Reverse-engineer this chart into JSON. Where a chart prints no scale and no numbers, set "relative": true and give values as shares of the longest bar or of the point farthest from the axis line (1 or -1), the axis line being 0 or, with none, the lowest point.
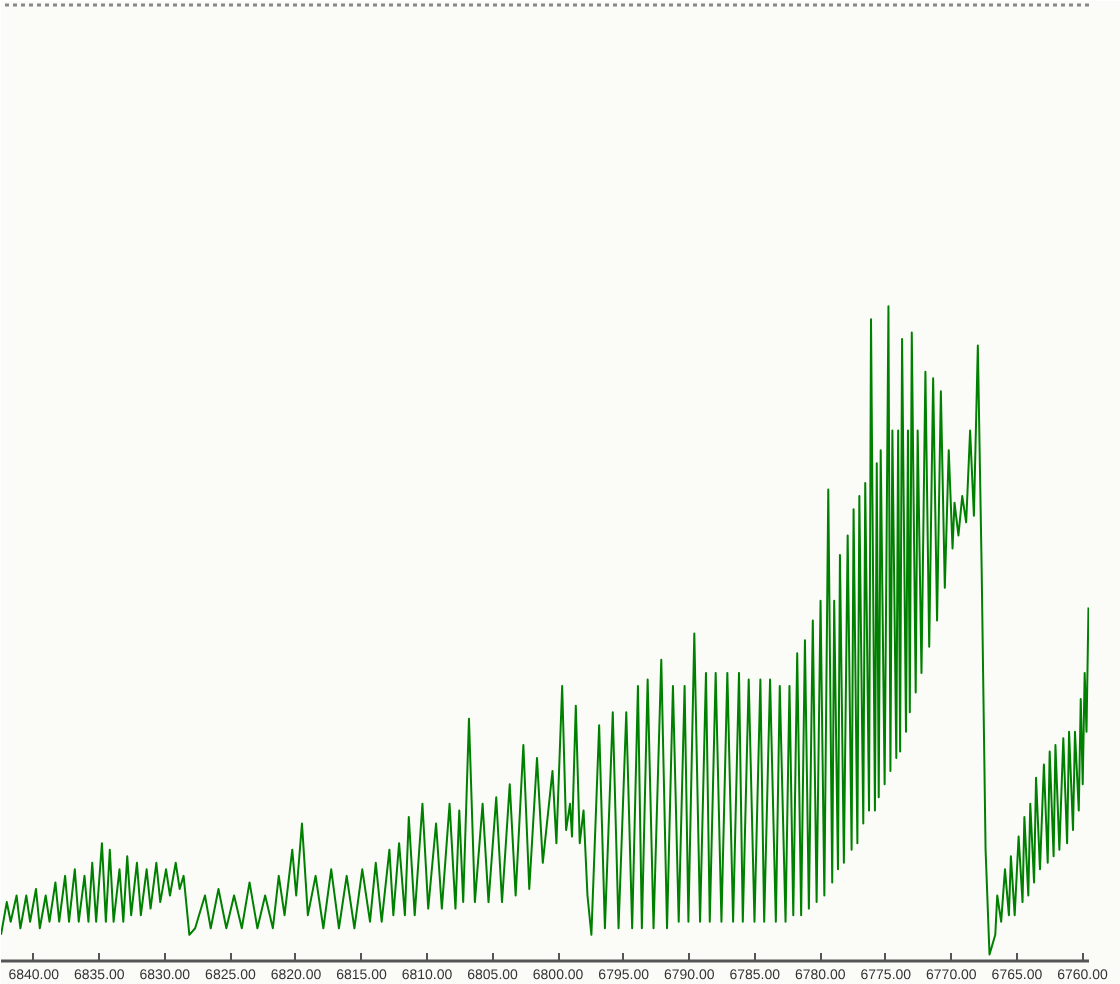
{
  "chart_data": {
    "type": "line",
    "relative": true,
    "color": "#008000",
    "xlim": [
      6842.5,
      6759.5
    ],
    "xticks": [
      {
        "value": 6840,
        "label": "6840.00"
      },
      {
        "value": 6835,
        "label": "6835.00"
      },
      {
        "value": 6830,
        "label": "6830.00"
      },
      {
        "value": 6825,
        "label": "6825.00"
      },
      {
        "value": 6820,
        "label": "6820.00"
      },
      {
        "value": 6815,
        "label": "6815.00"
      },
      {
        "value": 6810,
        "label": "6810.00"
      },
      {
        "value": 6805,
        "label": "6805.00"
      },
      {
        "value": 6800,
        "label": "6800.00"
      },
      {
        "value": 6795,
        "label": "6795.00"
      },
      {
        "value": 6790,
        "label": "6790.00"
      },
      {
        "value": 6785,
        "label": "6785.00"
      },
      {
        "value": 6780,
        "label": "6780.00"
      },
      {
        "value": 6775,
        "label": "6775.00"
      },
      {
        "value": 6770,
        "label": "6770.00"
      },
      {
        "value": 6765,
        "label": "6765.00"
      },
      {
        "value": 6760,
        "label": "6760.00"
      }
    ],
    "x": [
      6842.5,
      6842.06,
      6841.76,
      6841.31,
      6841.02,
      6840.57,
      6840.28,
      6839.83,
      6839.54,
      6839.09,
      6838.8,
      6838.35,
      6838.06,
      6837.61,
      6837.31,
      6836.87,
      6836.57,
      6836.13,
      6835.83,
      6835.54,
      6835.24,
      6834.8,
      6834.5,
      6834.2,
      6833.91,
      6833.46,
      6833.17,
      6832.87,
      6832.57,
      6832.13,
      6831.83,
      6831.39,
      6831.09,
      6830.65,
      6830.35,
      6829.91,
      6829.61,
      6829.17,
      6828.87,
      6828.57,
      6828.13,
      6827.69,
      6826.94,
      6826.5,
      6825.91,
      6825.31,
      6824.72,
      6824.13,
      6823.54,
      6822.94,
      6822.35,
      6821.76,
      6821.31,
      6820.87,
      6820.28,
      6819.98,
      6819.54,
      6819.09,
      6818.5,
      6817.91,
      6817.31,
      6816.72,
      6816.13,
      6815.54,
      6814.94,
      6814.35,
      6813.91,
      6813.46,
      6812.87,
      6812.57,
      6812.13,
      6811.69,
      6811.39,
      6810.94,
      6810.35,
      6809.91,
      6809.31,
      6808.87,
      6808.28,
      6807.83,
      6807.54,
      6807.24,
      6806.8,
      6806.35,
      6805.76,
      6805.31,
      6804.72,
      6804.28,
      6803.69,
      6803.24,
      6802.65,
      6802.2,
      6801.61,
      6801.17,
      6800.43,
      6800.13,
      6799.69,
      6799.39,
      6799.09,
      6798.94,
      6798.65,
      6798.35,
      6798.06,
      6797.76,
      6797.46,
      6796.87,
      6796.43,
      6795.83,
      6795.39,
      6794.8,
      6794.35,
      6793.91,
      6793.61,
      6793.17,
      6792.72,
      6792.13,
      6791.69,
      6791.24,
      6790.8,
      6790.35,
      6790.06,
      6789.61,
      6789.17,
      6788.72,
      6788.43,
      6787.98,
      6787.54,
      6787.09,
      6786.65,
      6786.2,
      6785.91,
      6785.46,
      6785.02,
      6784.57,
      6784.28,
      6783.83,
      6783.39,
      6783.09,
      6782.65,
      6782.35,
      6782.06,
      6781.76,
      6781.46,
      6781.17,
      6780.87,
      6780.57,
      6780.28,
      6779.98,
      6779.69,
      6779.39,
      6779.09,
      6778.94,
      6778.65,
      6778.5,
      6778.2,
      6777.91,
      6777.61,
      6777.46,
      6777.17,
      6777.02,
      6776.72,
      6776.57,
      6776.28,
      6776.13,
      6775.83,
      6775.69,
      6775.54,
      6775.39,
      6775.09,
      6774.8,
      6774.65,
      6774.5,
      6774.2,
      6774.06,
      6773.91,
      6773.76,
      6773.46,
      6773.31,
      6773.17,
      6773.02,
      6772.72,
      6772.57,
      6772.28,
      6771.98,
      6771.69,
      6771.39,
      6771.09,
      6770.8,
      6770.5,
      6770.2,
      6769.91,
      6769.76,
      6769.46,
      6769.17,
      6768.87,
      6768.57,
      6768.28,
      6767.98,
      6767.69,
      6767.39,
      6767.09,
      6766.65,
      6766.5,
      6766.2,
      6765.91,
      6765.61,
      6765.46,
      6765.17,
      6764.87,
      6764.57,
      6764.43,
      6764.13,
      6763.98,
      6763.69,
      6763.54,
      6763.24,
      6762.94,
      6762.65,
      6762.5,
      6762.2,
      6762.06,
      6761.76,
      6761.46,
      6761.17,
      6761.02,
      6760.72,
      6760.57,
      6760.28,
      6760.13,
      6759.98,
      6759.83,
      6759.69,
      6759.54
    ],
    "values": [
      0.04,
      0.09,
      0.06,
      0.1,
      0.05,
      0.1,
      0.06,
      0.11,
      0.05,
      0.1,
      0.06,
      0.12,
      0.06,
      0.13,
      0.06,
      0.14,
      0.06,
      0.13,
      0.06,
      0.15,
      0.06,
      0.18,
      0.06,
      0.17,
      0.06,
      0.14,
      0.06,
      0.16,
      0.07,
      0.15,
      0.07,
      0.14,
      0.08,
      0.15,
      0.09,
      0.14,
      0.1,
      0.15,
      0.11,
      0.13,
      0.04,
      0.05,
      0.1,
      0.05,
      0.11,
      0.05,
      0.1,
      0.05,
      0.12,
      0.05,
      0.1,
      0.05,
      0.13,
      0.07,
      0.17,
      0.1,
      0.21,
      0.07,
      0.13,
      0.05,
      0.14,
      0.05,
      0.13,
      0.05,
      0.14,
      0.06,
      0.15,
      0.06,
      0.17,
      0.07,
      0.18,
      0.07,
      0.22,
      0.07,
      0.24,
      0.08,
      0.21,
      0.08,
      0.24,
      0.08,
      0.23,
      0.09,
      0.37,
      0.09,
      0.24,
      0.09,
      0.25,
      0.09,
      0.27,
      0.1,
      0.33,
      0.11,
      0.31,
      0.15,
      0.29,
      0.18,
      0.42,
      0.2,
      0.24,
      0.19,
      0.39,
      0.18,
      0.23,
      0.1,
      0.04,
      0.36,
      0.05,
      0.38,
      0.05,
      0.38,
      0.05,
      0.42,
      0.05,
      0.43,
      0.05,
      0.46,
      0.05,
      0.42,
      0.06,
      0.42,
      0.06,
      0.5,
      0.06,
      0.44,
      0.06,
      0.44,
      0.06,
      0.44,
      0.06,
      0.44,
      0.06,
      0.43,
      0.06,
      0.43,
      0.06,
      0.43,
      0.06,
      0.42,
      0.06,
      0.42,
      0.07,
      0.47,
      0.07,
      0.49,
      0.08,
      0.52,
      0.09,
      0.55,
      0.1,
      0.72,
      0.12,
      0.55,
      0.14,
      0.62,
      0.15,
      0.65,
      0.17,
      0.69,
      0.18,
      0.71,
      0.21,
      0.73,
      0.23,
      0.98,
      0.23,
      0.76,
      0.25,
      0.78,
      0.27,
      1.0,
      0.29,
      0.81,
      0.31,
      0.81,
      0.32,
      0.95,
      0.35,
      0.81,
      0.38,
      0.96,
      0.41,
      0.81,
      0.44,
      0.9,
      0.48,
      0.89,
      0.52,
      0.87,
      0.57,
      0.78,
      0.63,
      0.7,
      0.65,
      0.71,
      0.67,
      0.81,
      0.68,
      0.94,
      0.6,
      0.17,
      0.01,
      0.04,
      0.1,
      0.06,
      0.14,
      0.07,
      0.16,
      0.07,
      0.19,
      0.09,
      0.22,
      0.1,
      0.24,
      0.12,
      0.28,
      0.14,
      0.3,
      0.15,
      0.32,
      0.16,
      0.33,
      0.17,
      0.34,
      0.18,
      0.35,
      0.2,
      0.35,
      0.23,
      0.4,
      0.27,
      0.44,
      0.35,
      0.54
    ]
  }
}
